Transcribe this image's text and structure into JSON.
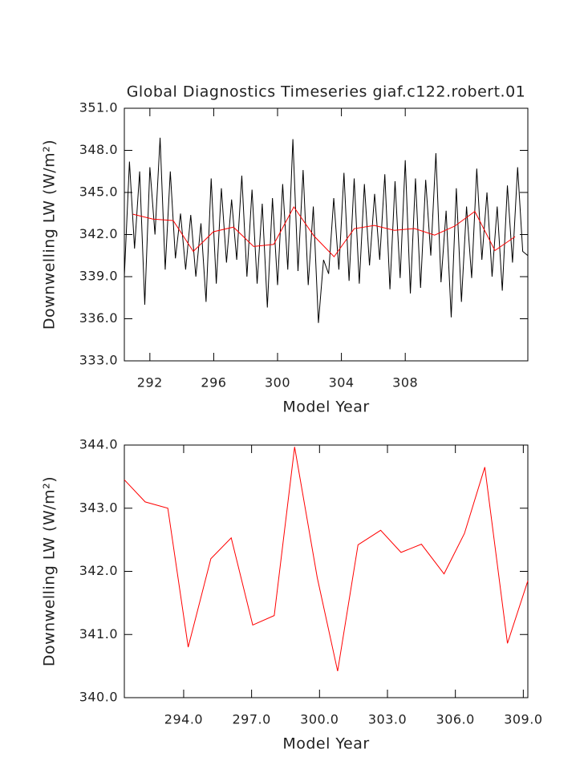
{
  "chart_data": [
    {
      "type": "line",
      "title": "Global Diagnostics Timeseries giaf.c122.robert.01",
      "x_label": "Model Year",
      "y_label": "Downwelling LW (W/m²)",
      "xlim": [
        290.4,
        315.68
      ],
      "ylim": [
        333,
        351
      ],
      "xticks": [
        292,
        296,
        300,
        304,
        308
      ],
      "yticks": [
        {
          "value": 333,
          "label": "333.0"
        },
        {
          "value": 336,
          "label": "336.0"
        },
        {
          "value": 339,
          "label": "339.0"
        },
        {
          "value": 342,
          "label": "342.0"
        },
        {
          "value": 345,
          "label": "345.0"
        },
        {
          "value": 348,
          "label": "348.0"
        },
        {
          "value": 351,
          "label": "351.0"
        }
      ],
      "series": [
        {
          "color": "#000000",
          "x": [
            290.4,
            290.72,
            291.04,
            291.36,
            291.68,
            292,
            292.32,
            292.64,
            292.96,
            293.28,
            293.6,
            293.92,
            294.24,
            294.56,
            294.88,
            295.2,
            295.52,
            295.84,
            296.16,
            296.48,
            296.8,
            297.12,
            297.44,
            297.76,
            298.08,
            298.4,
            298.72,
            299.04,
            299.36,
            299.68,
            300,
            300.32,
            300.64,
            300.96,
            301.28,
            301.6,
            301.92,
            302.24,
            302.56,
            302.88,
            303.2,
            303.52,
            303.84,
            304.16,
            304.48,
            304.8,
            305.12,
            305.44,
            305.76,
            306.08,
            306.4,
            306.72,
            307.04,
            307.36,
            307.68,
            308,
            308.32,
            308.64,
            308.96,
            309.28,
            309.6,
            309.92,
            310.24,
            310.56,
            310.88,
            311.2,
            311.52,
            311.84,
            312.16,
            312.48,
            312.8,
            313.12,
            313.44,
            313.76,
            314.08,
            314.4,
            314.72,
            315.04,
            315.36,
            315.68
          ],
          "values": [
            339,
            347.2,
            341,
            346.5,
            337,
            346.8,
            342,
            348.9,
            339.5,
            346.5,
            340.3,
            343.5,
            339.5,
            343.4,
            339,
            342.8,
            337.2,
            346,
            338.5,
            345.3,
            340,
            344.5,
            340.2,
            346.2,
            339,
            345.2,
            338.5,
            344.2,
            336.8,
            344.6,
            338.4,
            345.6,
            339.5,
            348.8,
            339.4,
            346.6,
            338.4,
            344,
            335.7,
            340.2,
            339.2,
            344.6,
            339.5,
            346.4,
            338.7,
            346,
            338.5,
            345.6,
            339.8,
            344.9,
            340.2,
            346.3,
            338.1,
            345.8,
            338.9,
            347.3,
            337.8,
            346,
            338.2,
            345.9,
            340.5,
            347.8,
            338.6,
            343.7,
            336.1,
            345.3,
            337.2,
            344,
            338.9,
            346.7,
            340.2,
            345,
            339,
            344,
            338,
            345.5,
            340,
            346.8,
            340.8,
            340.5
          ]
        },
        {
          "color": "#ff0000",
          "x": [
            290.94,
            292.2,
            293.46,
            294.72,
            295.98,
            297.24,
            298.5,
            299.76,
            301.02,
            302.28,
            303.54,
            304.8,
            306.06,
            307.32,
            308.58,
            309.84,
            311.1,
            312.36,
            313.62,
            314.88
          ],
          "values": [
            343.45,
            343.1,
            343.0,
            340.8,
            342.2,
            342.53,
            341.15,
            341.3,
            343.97,
            341.9,
            340.42,
            342.42,
            342.65,
            342.3,
            342.43,
            341.96,
            342.6,
            343.65,
            340.86,
            341.85
          ]
        }
      ]
    },
    {
      "type": "line",
      "x_label": "Model Year",
      "y_label": "Downwelling LW (W/m²)",
      "xlim": [
        291.38,
        309.2
      ],
      "ylim": [
        340,
        344
      ],
      "xticks": [
        {
          "value": 294,
          "label": "294.0"
        },
        {
          "value": 297,
          "label": "297.0"
        },
        {
          "value": 300,
          "label": "300.0"
        },
        {
          "value": 303,
          "label": "303.0"
        },
        {
          "value": 306,
          "label": "306.0"
        },
        {
          "value": 309,
          "label": "309.0"
        }
      ],
      "yticks": [
        {
          "value": 340,
          "label": "340.0"
        },
        {
          "value": 341,
          "label": "341.0"
        },
        {
          "value": 342,
          "label": "342.0"
        },
        {
          "value": 343,
          "label": "343.0"
        },
        {
          "value": 344,
          "label": "344.0"
        }
      ],
      "series": [
        {
          "color": "#ff0000",
          "x": [
            291.38,
            292.3,
            293.3,
            294.2,
            295.2,
            296.1,
            297.05,
            298.0,
            298.9,
            299.9,
            300.8,
            301.7,
            302.7,
            303.6,
            304.5,
            305.5,
            306.4,
            307.3,
            308.3,
            309.2
          ],
          "values": [
            343.45,
            343.1,
            343.0,
            340.8,
            342.2,
            342.53,
            341.15,
            341.3,
            343.97,
            341.9,
            340.42,
            342.42,
            342.65,
            342.3,
            342.43,
            341.96,
            342.6,
            343.65,
            340.86,
            341.85
          ]
        }
      ]
    }
  ]
}
